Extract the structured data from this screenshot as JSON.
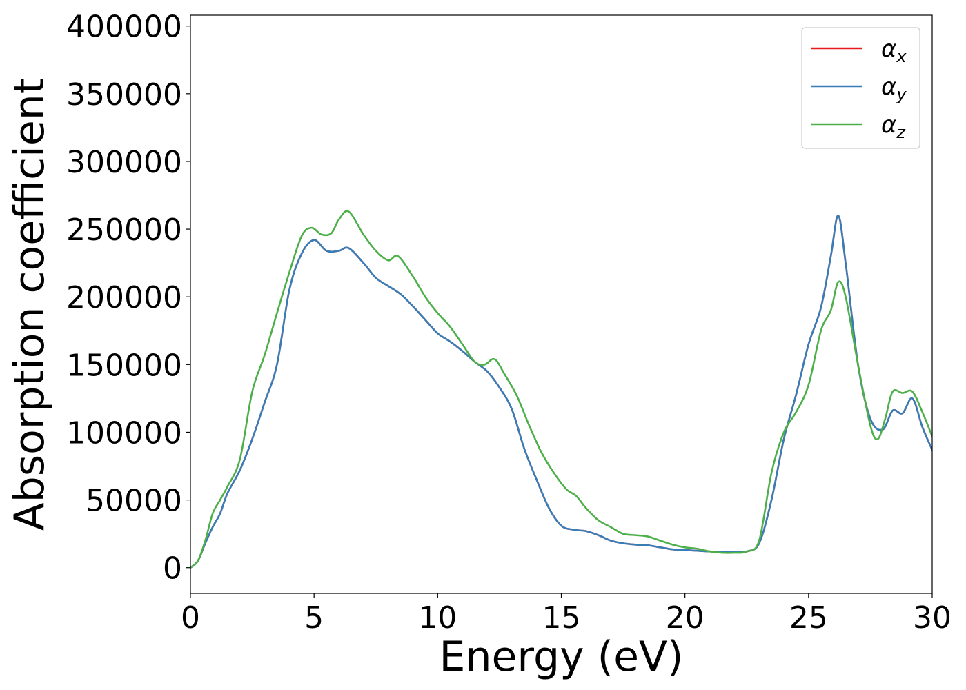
{
  "chart_data": {
    "type": "line",
    "xlabel": "Energy (eV)",
    "ylabel": "Absorption coefficient",
    "xlim": [
      0,
      30
    ],
    "ylim": [
      -19000,
      408000
    ],
    "xticks": [
      0,
      5,
      10,
      15,
      20,
      25,
      30
    ],
    "xtick_labels": [
      "0",
      "5",
      "10",
      "15",
      "20",
      "25",
      "30"
    ],
    "yticks": [
      0,
      50000,
      100000,
      150000,
      200000,
      250000,
      300000,
      350000,
      400000
    ],
    "ytick_labels": [
      "0",
      "50000",
      "100000",
      "150000",
      "200000",
      "250000",
      "300000",
      "350000",
      "400000"
    ],
    "grid": false,
    "legend_position": "top-right",
    "series": [
      {
        "name": "α_x",
        "label_base": "α",
        "label_sub": "x",
        "color": "#e41a1c",
        "x": [
          0,
          0.3,
          0.6,
          0.9,
          1.2,
          1.5,
          2.0,
          2.5,
          3.0,
          3.5,
          4.0,
          4.5,
          5.0,
          5.5,
          6.0,
          6.4,
          7.0,
          7.5,
          8.0,
          8.5,
          9.0,
          9.5,
          10.0,
          10.5,
          11.0,
          11.5,
          12.0,
          12.5,
          13.0,
          13.5,
          14.0,
          14.5,
          15.0,
          15.5,
          16.0,
          16.5,
          17.0,
          17.5,
          18.0,
          18.5,
          19.0,
          19.5,
          20.0,
          20.5,
          21.0,
          21.5,
          22.0,
          22.5,
          23.0,
          23.5,
          24.0,
          24.5,
          25.0,
          25.5,
          25.9,
          26.2,
          26.5,
          27.0,
          27.5,
          28.0,
          28.4,
          28.8,
          29.2,
          29.6,
          30.0
        ],
        "y": [
          0,
          5000,
          18000,
          30000,
          40000,
          55000,
          72000,
          95000,
          122000,
          150000,
          205000,
          232000,
          242000,
          234000,
          234000,
          236000,
          225000,
          214000,
          208000,
          202000,
          193000,
          183000,
          173000,
          167000,
          160000,
          152000,
          145000,
          133000,
          117000,
          88000,
          65000,
          44000,
          31000,
          28000,
          27000,
          24000,
          20000,
          18000,
          17000,
          16500,
          15000,
          13500,
          13000,
          12500,
          12000,
          11800,
          11500,
          12000,
          18000,
          50000,
          95000,
          128000,
          165000,
          192000,
          230000,
          260000,
          225000,
          150000,
          110000,
          102000,
          116000,
          114000,
          125000,
          104000,
          87000
        ]
      },
      {
        "name": "α_y",
        "label_base": "α",
        "label_sub": "y",
        "color": "#377eb8",
        "x": [
          0,
          0.3,
          0.6,
          0.9,
          1.2,
          1.5,
          2.0,
          2.5,
          3.0,
          3.5,
          4.0,
          4.5,
          5.0,
          5.5,
          6.0,
          6.4,
          7.0,
          7.5,
          8.0,
          8.5,
          9.0,
          9.5,
          10.0,
          10.5,
          11.0,
          11.5,
          12.0,
          12.5,
          13.0,
          13.5,
          14.0,
          14.5,
          15.0,
          15.5,
          16.0,
          16.5,
          17.0,
          17.5,
          18.0,
          18.5,
          19.0,
          19.5,
          20.0,
          20.5,
          21.0,
          21.5,
          22.0,
          22.5,
          23.0,
          23.5,
          24.0,
          24.5,
          25.0,
          25.5,
          25.9,
          26.2,
          26.5,
          27.0,
          27.5,
          28.0,
          28.4,
          28.8,
          29.2,
          29.6,
          30.0
        ],
        "y": [
          0,
          5000,
          18000,
          30000,
          40000,
          55000,
          72000,
          95000,
          122000,
          150000,
          205000,
          232000,
          242000,
          234000,
          234000,
          236000,
          225000,
          214000,
          208000,
          202000,
          193000,
          183000,
          173000,
          167000,
          160000,
          152000,
          145000,
          133000,
          117000,
          88000,
          65000,
          44000,
          31000,
          28000,
          27000,
          24000,
          20000,
          18000,
          17000,
          16500,
          15000,
          13500,
          13000,
          12500,
          12000,
          11800,
          11500,
          12000,
          18000,
          50000,
          95000,
          128000,
          165000,
          192000,
          230000,
          260000,
          225000,
          150000,
          110000,
          102000,
          116000,
          114000,
          125000,
          104000,
          87000
        ]
      },
      {
        "name": "α_z",
        "label_base": "α",
        "label_sub": "z",
        "color": "#4daf4a",
        "x": [
          0,
          0.3,
          0.6,
          0.9,
          1.2,
          1.5,
          2.0,
          2.5,
          3.0,
          3.5,
          4.0,
          4.5,
          4.9,
          5.3,
          5.7,
          6.0,
          6.4,
          7.0,
          7.5,
          8.0,
          8.4,
          9.0,
          9.5,
          10.0,
          10.5,
          11.0,
          11.5,
          11.9,
          12.3,
          12.7,
          13.2,
          13.7,
          14.2,
          14.7,
          15.2,
          15.6,
          16.0,
          16.5,
          17.0,
          17.5,
          18.0,
          18.5,
          19.0,
          19.5,
          20.0,
          20.5,
          21.0,
          21.5,
          22.0,
          22.5,
          23.0,
          23.5,
          24.0,
          24.5,
          25.0,
          25.5,
          25.9,
          26.2,
          26.5,
          27.0,
          27.5,
          27.8,
          28.1,
          28.4,
          28.8,
          29.2,
          29.6,
          30.0
        ],
        "y": [
          0,
          5000,
          20000,
          40000,
          50000,
          60000,
          80000,
          130000,
          157000,
          188000,
          218000,
          245000,
          251000,
          246000,
          247000,
          257000,
          263000,
          246000,
          234000,
          227000,
          230000,
          215000,
          200000,
          188000,
          178000,
          165000,
          152000,
          150000,
          154000,
          143000,
          127000,
          105000,
          85000,
          70000,
          58000,
          53000,
          44000,
          35000,
          30000,
          25000,
          24000,
          23000,
          20000,
          17000,
          15000,
          14000,
          12000,
          11000,
          11000,
          12000,
          20000,
          70000,
          100000,
          115000,
          135000,
          175000,
          190000,
          211000,
          200000,
          150000,
          105000,
          95000,
          110000,
          130000,
          129000,
          130000,
          115000,
          97000
        ]
      }
    ]
  }
}
